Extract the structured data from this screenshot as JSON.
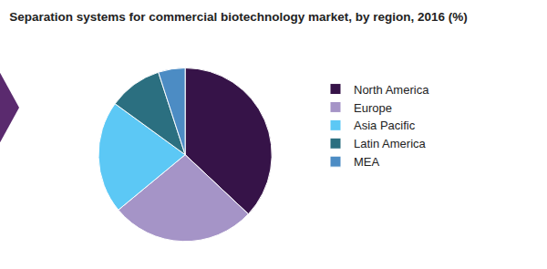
{
  "chart_data": {
    "type": "pie",
    "title": "Separation systems for commercial biotechnology market, by region, 2016 (%)",
    "categories": [
      "North America",
      "Europe",
      "Asia Pacific",
      "Latin America",
      "MEA"
    ],
    "values": [
      37,
      27,
      21,
      10,
      5
    ],
    "colors": [
      "#361348",
      "#a594c7",
      "#5cc8f5",
      "#2b6f80",
      "#4c8cc4"
    ],
    "legend": "right"
  }
}
